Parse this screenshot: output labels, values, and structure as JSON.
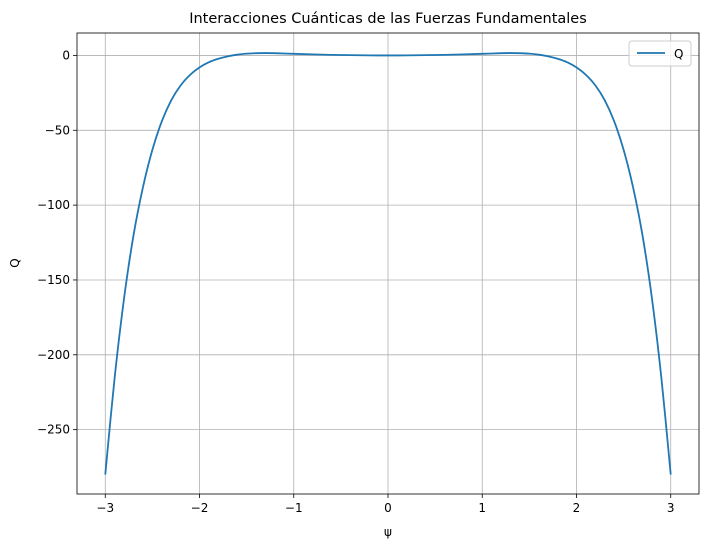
{
  "chart_data": {
    "type": "line",
    "title": "Interacciones Cuánticas de las Fuerzas Fundamentales",
    "xlabel": "ψ",
    "ylabel": "Q",
    "xlim": [
      -3.3,
      3.3
    ],
    "ylim": [
      -293,
      15
    ],
    "xticks": [
      -3,
      -2,
      -1,
      0,
      1,
      2,
      3
    ],
    "xtick_labels": [
      "−3",
      "−2",
      "−1",
      "0",
      "1",
      "2",
      "3"
    ],
    "yticks": [
      0,
      -50,
      -100,
      -150,
      -200,
      -250
    ],
    "ytick_labels": [
      "0",
      "−50",
      "−100",
      "−150",
      "−200",
      "−250"
    ],
    "grid": true,
    "legend": "upper right",
    "series": [
      {
        "name": "Q",
        "color": "#1f77b4",
        "x": [
          -3.0,
          -2.9,
          -2.8,
          -2.7,
          -2.6,
          -2.5,
          -2.4,
          -2.3,
          -2.2,
          -2.1,
          -2.0,
          -1.9,
          -1.8,
          -1.7,
          -1.6,
          -1.5,
          -1.4,
          -1.3,
          -1.2,
          -1.0,
          -0.8,
          -0.6,
          -0.4,
          -0.2,
          0.0,
          0.2,
          0.4,
          0.6,
          0.8,
          1.0,
          1.2,
          1.3,
          1.4,
          1.5,
          1.6,
          1.7,
          1.8,
          1.9,
          2.0,
          2.1,
          2.2,
          2.3,
          2.4,
          2.5,
          2.6,
          2.7,
          2.8,
          2.9,
          3.0
        ],
        "y": [
          -280,
          -215,
          -162,
          -120,
          -88,
          -63,
          -44,
          -30,
          -20,
          -13,
          -8,
          -4.5,
          -2.2,
          -0.6,
          0.5,
          1.2,
          1.5,
          1.6,
          1.5,
          1.1,
          0.7,
          0.4,
          0.2,
          0.05,
          0,
          0.05,
          0.2,
          0.4,
          0.7,
          1.1,
          1.5,
          1.6,
          1.5,
          1.2,
          0.5,
          -0.6,
          -2.2,
          -4.5,
          -8,
          -13,
          -20,
          -30,
          -44,
          -63,
          -88,
          -120,
          -162,
          -215,
          -280
        ]
      }
    ]
  }
}
